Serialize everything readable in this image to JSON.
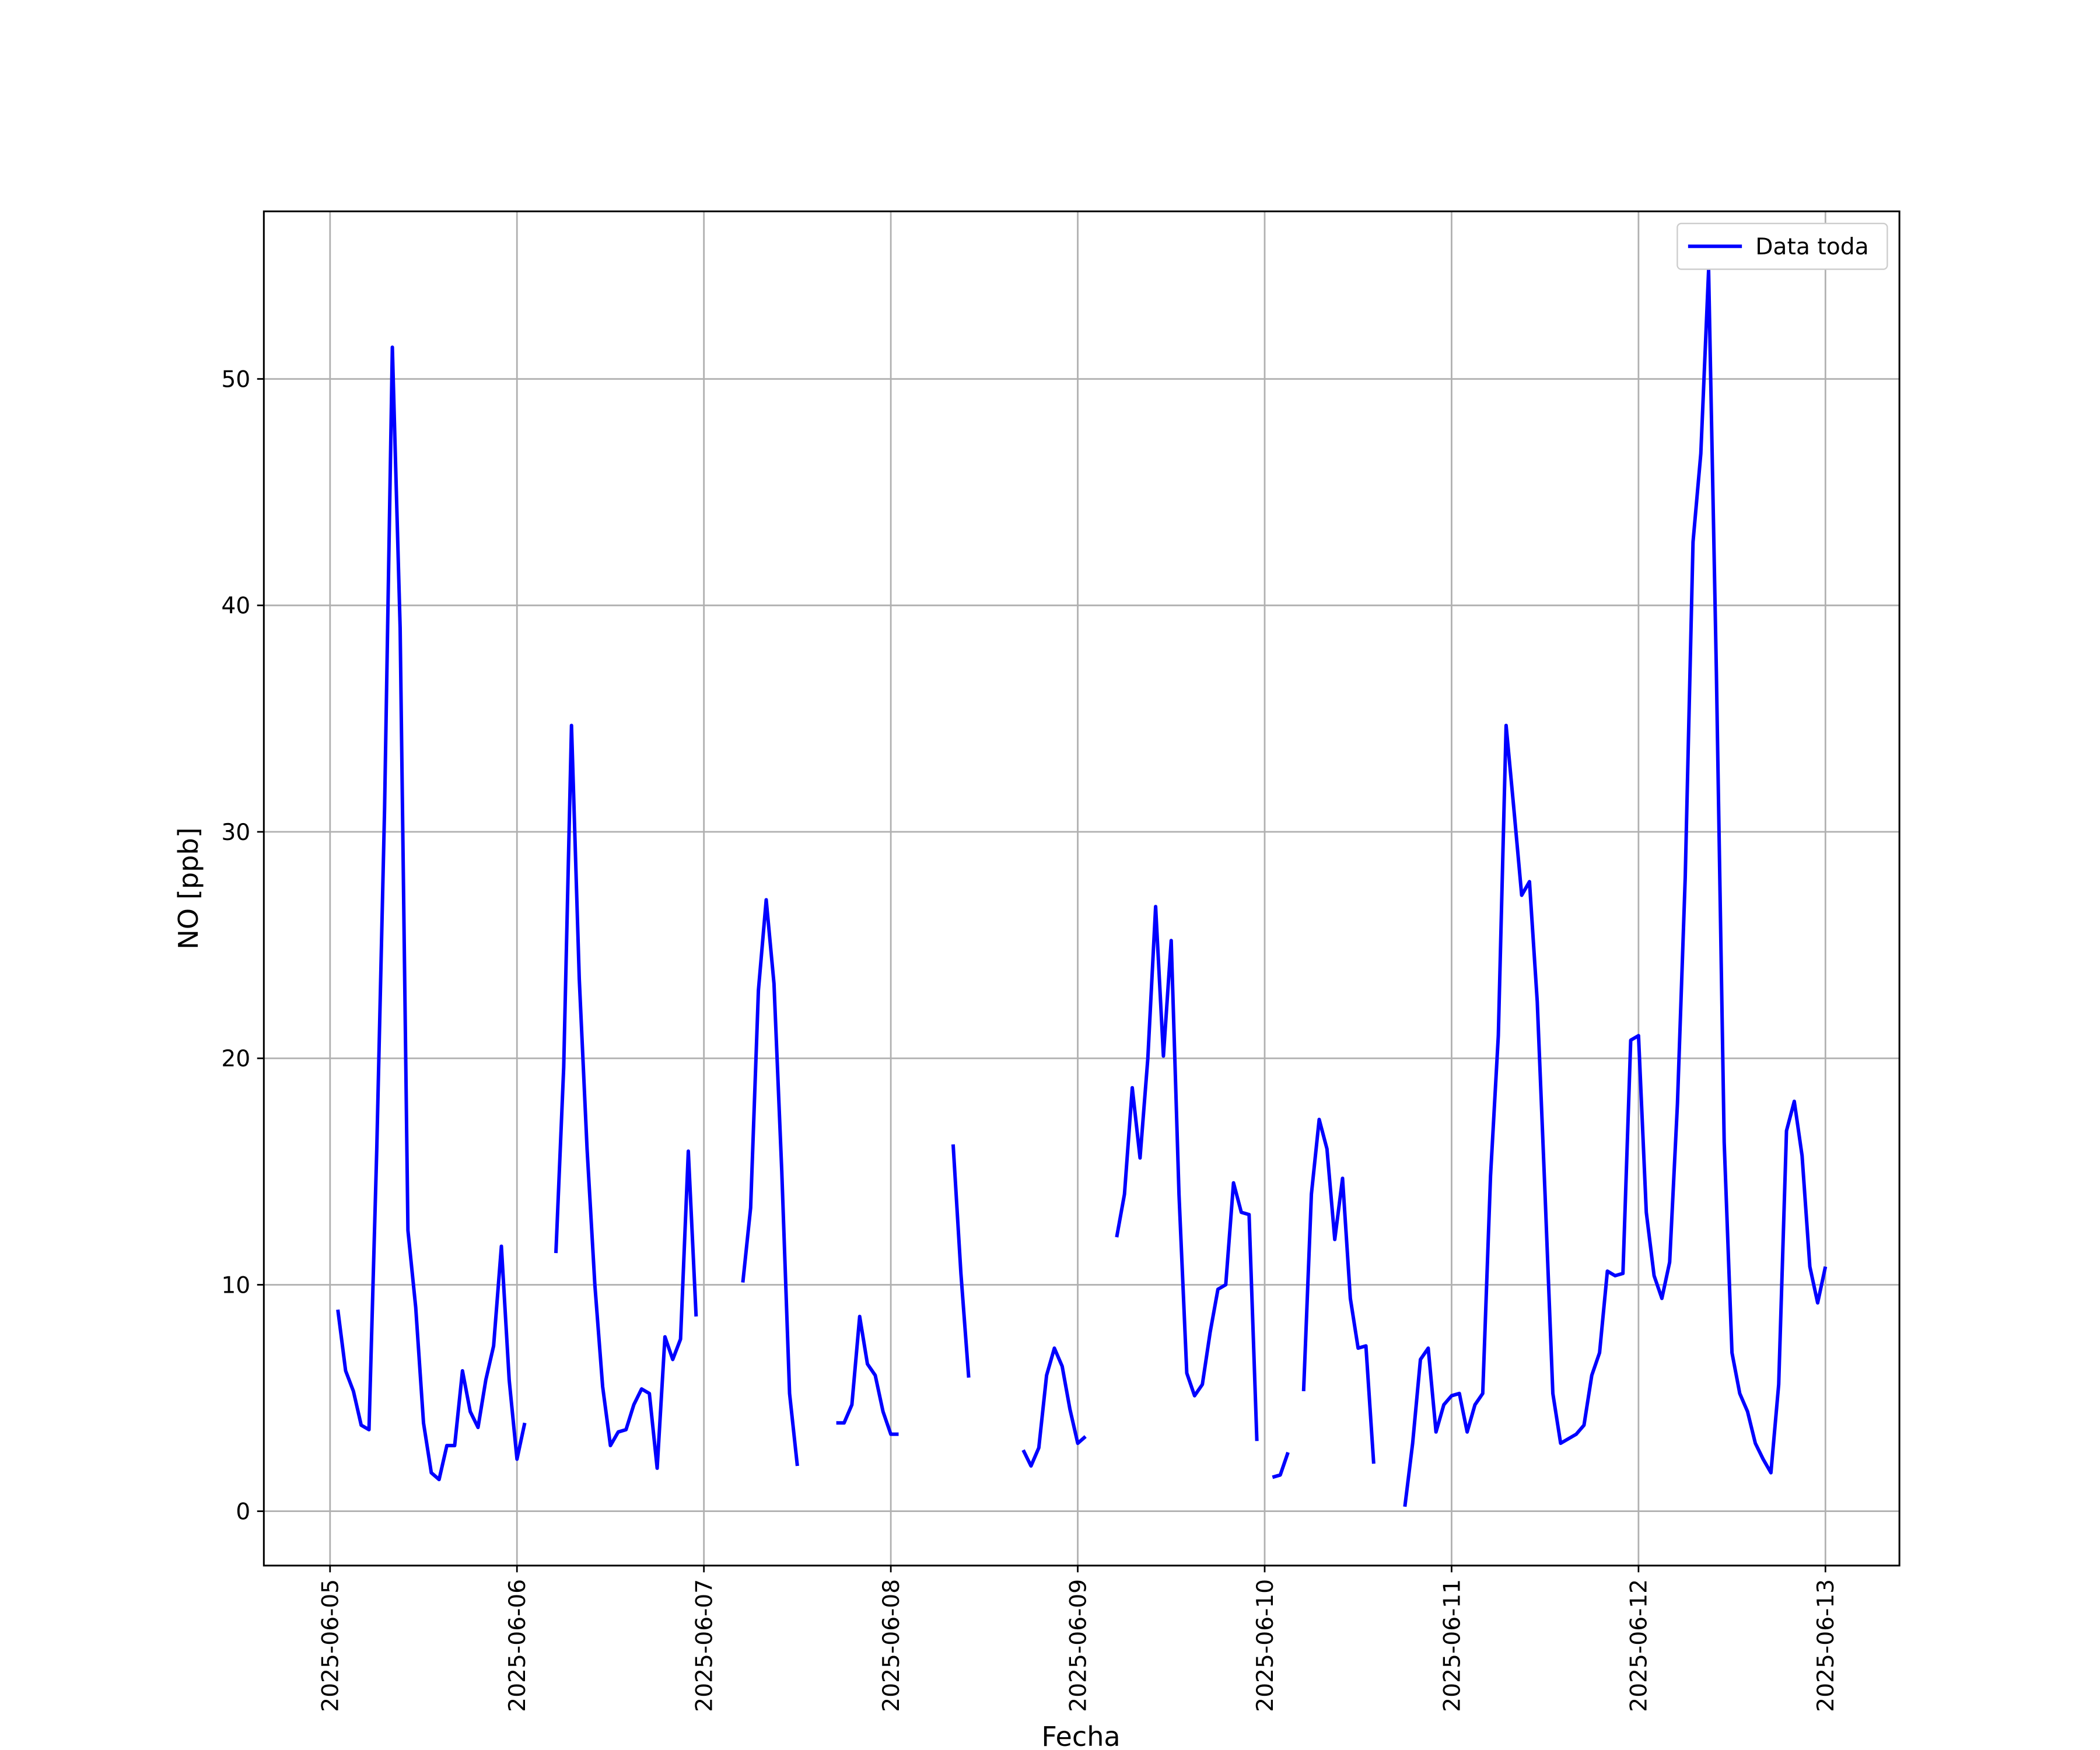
{
  "chart_data": {
    "type": "line",
    "xlabel": "Fecha",
    "ylabel": "NO [ppb]",
    "x": [
      "2025-06-05 01:00",
      "2025-06-05 02:00",
      "2025-06-05 03:00",
      "2025-06-05 04:00",
      "2025-06-05 05:00",
      "2025-06-05 06:00",
      "2025-06-05 07:00",
      "2025-06-05 08:00",
      "2025-06-05 09:00",
      "2025-06-05 10:00",
      "2025-06-05 11:00",
      "2025-06-05 12:00",
      "2025-06-05 13:00",
      "2025-06-05 14:00",
      "2025-06-05 15:00",
      "2025-06-05 16:00",
      "2025-06-05 17:00",
      "2025-06-05 18:00",
      "2025-06-05 19:00",
      "2025-06-05 20:00",
      "2025-06-05 21:00",
      "2025-06-05 22:00",
      "2025-06-05 23:00",
      "2025-06-06 00:00",
      "2025-06-06 01:00",
      "2025-06-06 02:00",
      "2025-06-06 05:00",
      "2025-06-06 06:00",
      "2025-06-06 07:00",
      "2025-06-06 08:00",
      "2025-06-06 09:00",
      "2025-06-06 10:00",
      "2025-06-06 11:00",
      "2025-06-06 12:00",
      "2025-06-06 13:00",
      "2025-06-06 14:00",
      "2025-06-06 15:00",
      "2025-06-06 16:00",
      "2025-06-06 17:00",
      "2025-06-06 18:00",
      "2025-06-06 19:00",
      "2025-06-06 20:00",
      "2025-06-06 21:00",
      "2025-06-06 22:00",
      "2025-06-06 23:00",
      "2025-06-07 00:00",
      "2025-06-07 05:00",
      "2025-06-07 06:00",
      "2025-06-07 07:00",
      "2025-06-07 08:00",
      "2025-06-07 09:00",
      "2025-06-07 10:00",
      "2025-06-07 11:00",
      "2025-06-07 12:00",
      "2025-06-07 13:00",
      "2025-06-07 17:00",
      "2025-06-07 18:00",
      "2025-06-07 19:00",
      "2025-06-07 20:00",
      "2025-06-07 21:00",
      "2025-06-07 22:00",
      "2025-06-07 23:00",
      "2025-06-08 00:00",
      "2025-06-08 01:00",
      "2025-06-08 02:00",
      "2025-06-08 08:00",
      "2025-06-08 09:00",
      "2025-06-08 10:00",
      "2025-06-08 11:00",
      "2025-06-08 17:00",
      "2025-06-08 18:00",
      "2025-06-08 19:00",
      "2025-06-08 20:00",
      "2025-06-08 21:00",
      "2025-06-08 22:00",
      "2025-06-08 23:00",
      "2025-06-09 00:00",
      "2025-06-09 01:00",
      "2025-06-09 02:00",
      "2025-06-09 05:00",
      "2025-06-09 06:00",
      "2025-06-09 07:00",
      "2025-06-09 08:00",
      "2025-06-09 09:00",
      "2025-06-09 10:00",
      "2025-06-09 11:00",
      "2025-06-09 12:00",
      "2025-06-09 13:00",
      "2025-06-09 14:00",
      "2025-06-09 15:00",
      "2025-06-09 16:00",
      "2025-06-09 17:00",
      "2025-06-09 18:00",
      "2025-06-09 19:00",
      "2025-06-09 20:00",
      "2025-06-09 21:00",
      "2025-06-09 22:00",
      "2025-06-09 23:00",
      "2025-06-10 00:00",
      "2025-06-10 01:00",
      "2025-06-10 02:00",
      "2025-06-10 03:00",
      "2025-06-10 04:00",
      "2025-06-10 05:00",
      "2025-06-10 06:00",
      "2025-06-10 07:00",
      "2025-06-10 08:00",
      "2025-06-10 09:00",
      "2025-06-10 10:00",
      "2025-06-10 11:00",
      "2025-06-10 12:00",
      "2025-06-10 13:00",
      "2025-06-10 14:00",
      "2025-06-10 15:00",
      "2025-06-10 18:00",
      "2025-06-10 19:00",
      "2025-06-10 20:00",
      "2025-06-10 21:00",
      "2025-06-10 22:00",
      "2025-06-10 23:00",
      "2025-06-11 00:00",
      "2025-06-11 01:00",
      "2025-06-11 02:00",
      "2025-06-11 03:00",
      "2025-06-11 04:00",
      "2025-06-11 05:00",
      "2025-06-11 06:00",
      "2025-06-11 07:00",
      "2025-06-11 08:00",
      "2025-06-11 09:00",
      "2025-06-11 10:00",
      "2025-06-11 11:00",
      "2025-06-11 12:00",
      "2025-06-11 13:00",
      "2025-06-11 14:00",
      "2025-06-11 15:00",
      "2025-06-11 16:00",
      "2025-06-11 17:00",
      "2025-06-11 18:00",
      "2025-06-11 19:00",
      "2025-06-11 20:00",
      "2025-06-11 21:00",
      "2025-06-11 22:00",
      "2025-06-11 23:00",
      "2025-06-12 00:00",
      "2025-06-12 01:00",
      "2025-06-12 02:00",
      "2025-06-12 03:00",
      "2025-06-12 04:00",
      "2025-06-12 05:00",
      "2025-06-12 06:00",
      "2025-06-12 07:00",
      "2025-06-12 08:00",
      "2025-06-12 09:00",
      "2025-06-12 10:00",
      "2025-06-12 11:00",
      "2025-06-12 12:00",
      "2025-06-12 13:00",
      "2025-06-12 14:00",
      "2025-06-12 15:00",
      "2025-06-12 16:00",
      "2025-06-12 17:00",
      "2025-06-12 18:00",
      "2025-06-12 19:00",
      "2025-06-12 20:00",
      "2025-06-12 21:00",
      "2025-06-12 22:00",
      "2025-06-12 23:00",
      "2025-06-13 00:00"
    ],
    "series": [
      {
        "name": "Data toda",
        "color": "#0000ff",
        "values": [
          8.9,
          6.2,
          5.3,
          3.8,
          3.6,
          16,
          31,
          51.4,
          39,
          12.4,
          9,
          3.9,
          1.7,
          1.4,
          2.9,
          2.9,
          6.2,
          4.4,
          3.7,
          5.8,
          7.3,
          11.7,
          5.8,
          2.3,
          3.9,
          null,
          11.4,
          19.6,
          34.7,
          23.5,
          16,
          10,
          5.5,
          2.9,
          3.5,
          3.6,
          4.7,
          5.4,
          5.2,
          1.9,
          7.7,
          6.7,
          7.6,
          15.9,
          8.6,
          null,
          10.1,
          13.4,
          23,
          27,
          23.3,
          15,
          5.2,
          2,
          null,
          3.9,
          3.9,
          4.7,
          8.6,
          6.5,
          6.0,
          4.4,
          3.4,
          3.4,
          null,
          16.2,
          10.5,
          5.9,
          null,
          2.7,
          2.0,
          2.8,
          6.0,
          7.2,
          6.4,
          4.5,
          3.0,
          3.3,
          null,
          12.1,
          14.0,
          18.7,
          15.6,
          20,
          26.7,
          20.1,
          25.2,
          14,
          6.1,
          5.1,
          5.6,
          7.9,
          9.8,
          10.0,
          14.5,
          13.2,
          13.1,
          3.1,
          null,
          1.5,
          1.6,
          2.6,
          null,
          5.3,
          14,
          17.3,
          16,
          12,
          14.7,
          9.4,
          7.2,
          7.3,
          2.1,
          null,
          0.2,
          3,
          6.7,
          7.2,
          3.5,
          4.7,
          5.1,
          5.2,
          3.5,
          4.7,
          5.2,
          14.8,
          21,
          34.7,
          31,
          27.2,
          27.8,
          22.5,
          14,
          5.2,
          3.0,
          3.2,
          3.4,
          3.8,
          6.0,
          7.0,
          10.6,
          10.4,
          10.5,
          20.8,
          21.0,
          13.2,
          10.4,
          9.4,
          11,
          18,
          28,
          42.8,
          46.7,
          54.8,
          37,
          16.3,
          7,
          5.2,
          4.4,
          3,
          2.3,
          1.7,
          5.6,
          16.8,
          18.1,
          15.7,
          10.8,
          9.2,
          10.8
        ]
      }
    ],
    "xlim": [
      "2025-06-04 15:30",
      "2025-06-13 09:30"
    ],
    "xticks": [
      "2025-06-05",
      "2025-06-06",
      "2025-06-07",
      "2025-06-08",
      "2025-06-09",
      "2025-06-10",
      "2025-06-11",
      "2025-06-12",
      "2025-06-13"
    ],
    "ylim": [
      -2.4,
      57.4
    ],
    "yticks": [
      0,
      10,
      20,
      30,
      40,
      50
    ],
    "grid": true,
    "legend": "upper right"
  }
}
